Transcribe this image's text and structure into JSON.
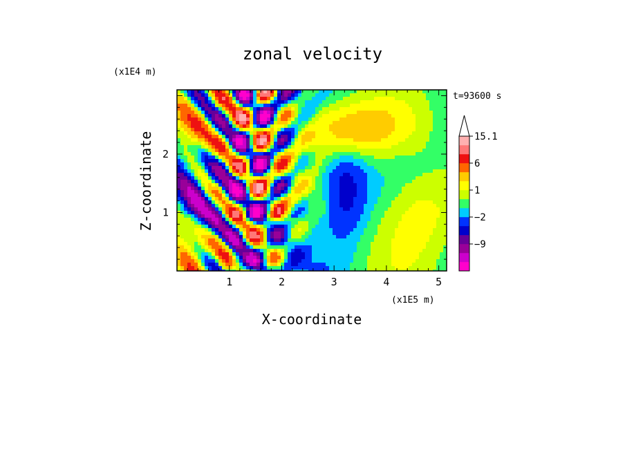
{
  "chart_data": {
    "type": "heatmap",
    "title": "zonal velocity",
    "time_label": "t=93600 s",
    "xlabel": "X-coordinate",
    "ylabel": "Z-coordinate",
    "x_unit": "(x1E5 m)",
    "y_unit": "(x1E4 m)",
    "xlim": [
      0,
      5.15
    ],
    "ylim": [
      0,
      3.1
    ],
    "x_ticks": [
      1,
      2,
      3,
      4,
      5
    ],
    "y_ticks": [
      1,
      2
    ],
    "colorbar": {
      "levels": [
        "-15",
        "-12",
        "-9",
        "-6",
        "-4",
        "-2",
        "-1",
        "0",
        "1",
        "2",
        "4",
        "6",
        "9",
        "12",
        "15.1"
      ],
      "colors": [
        "#ff00cc",
        "#cc00cc",
        "#990099",
        "#660099",
        "#0000cc",
        "#0033ff",
        "#00ccff",
        "#33ff66",
        "#ccff00",
        "#ffff00",
        "#ffcc00",
        "#ff6600",
        "#ee1111",
        "#ff7777",
        "#ffb0b0"
      ],
      "extend": "max",
      "labeled_levels": [
        "15.1",
        "6",
        "1",
        "-2",
        "-9"
      ]
    },
    "grid": false
  }
}
